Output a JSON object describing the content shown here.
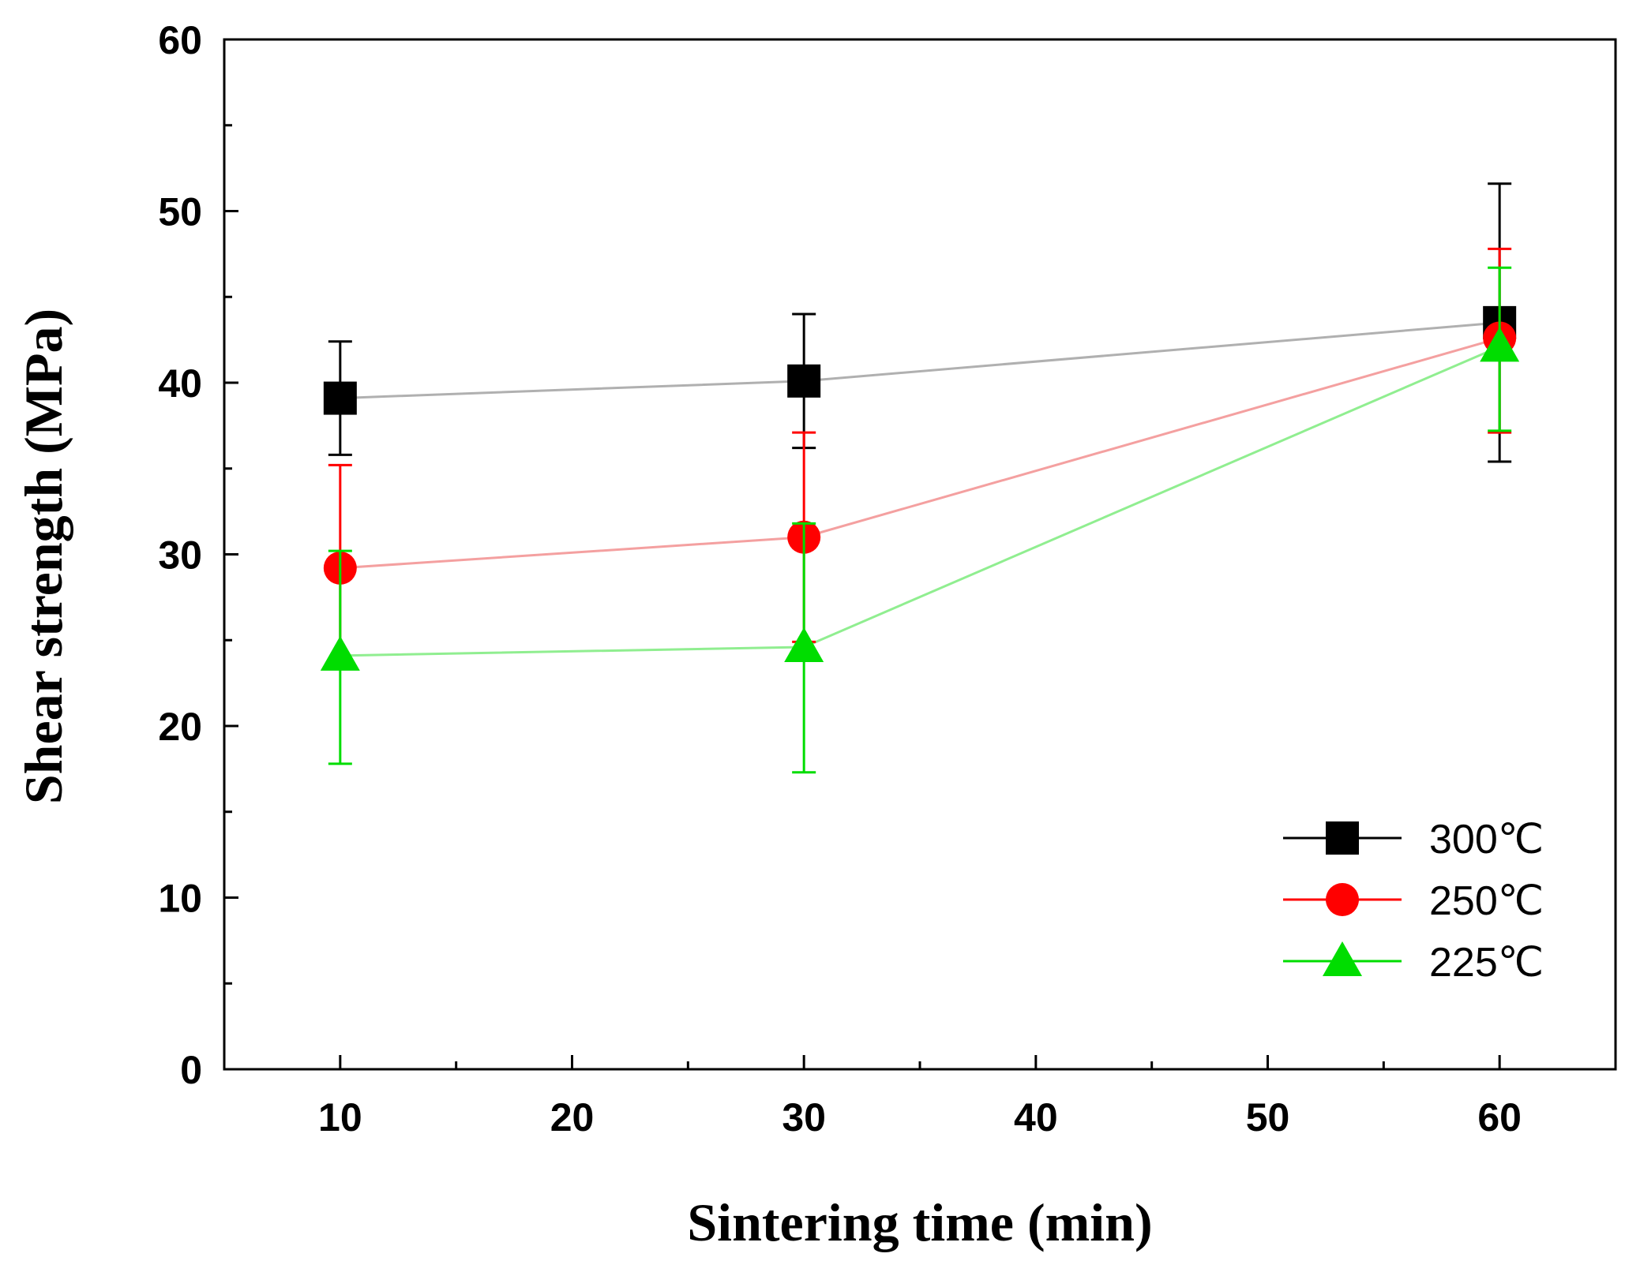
{
  "chart_data": {
    "type": "line",
    "title": "",
    "xlabel": "Sintering time (min)",
    "ylabel": "Shear strength (MPa)",
    "xlim": [
      5,
      65
    ],
    "ylim": [
      0,
      60
    ],
    "xticks": [
      10,
      20,
      30,
      40,
      50,
      60
    ],
    "yticks": [
      0,
      10,
      20,
      30,
      40,
      50,
      60
    ],
    "x": [
      10,
      30,
      60
    ],
    "legend_position": "bottom-right",
    "series": [
      {
        "name": "300℃",
        "marker": "square",
        "color": "#000000",
        "line_color": "#b0b0b0",
        "values": [
          39.1,
          40.1,
          43.5
        ],
        "err_low": [
          35.8,
          36.2,
          35.4
        ],
        "err_high": [
          42.4,
          44.0,
          51.6
        ]
      },
      {
        "name": "250℃",
        "marker": "circle",
        "color": "#ff0000",
        "line_color": "#f4a0a0",
        "values": [
          29.2,
          31.0,
          42.6
        ],
        "err_low": [
          23.4,
          24.9,
          37.1
        ],
        "err_high": [
          35.2,
          37.1,
          47.8
        ]
      },
      {
        "name": "225℃",
        "marker": "triangle",
        "color": "#00dd00",
        "line_color": "#90ee90",
        "values": [
          24.1,
          24.6,
          42.1
        ],
        "err_low": [
          17.8,
          17.3,
          37.2
        ],
        "err_high": [
          30.2,
          31.8,
          46.7
        ]
      }
    ]
  }
}
